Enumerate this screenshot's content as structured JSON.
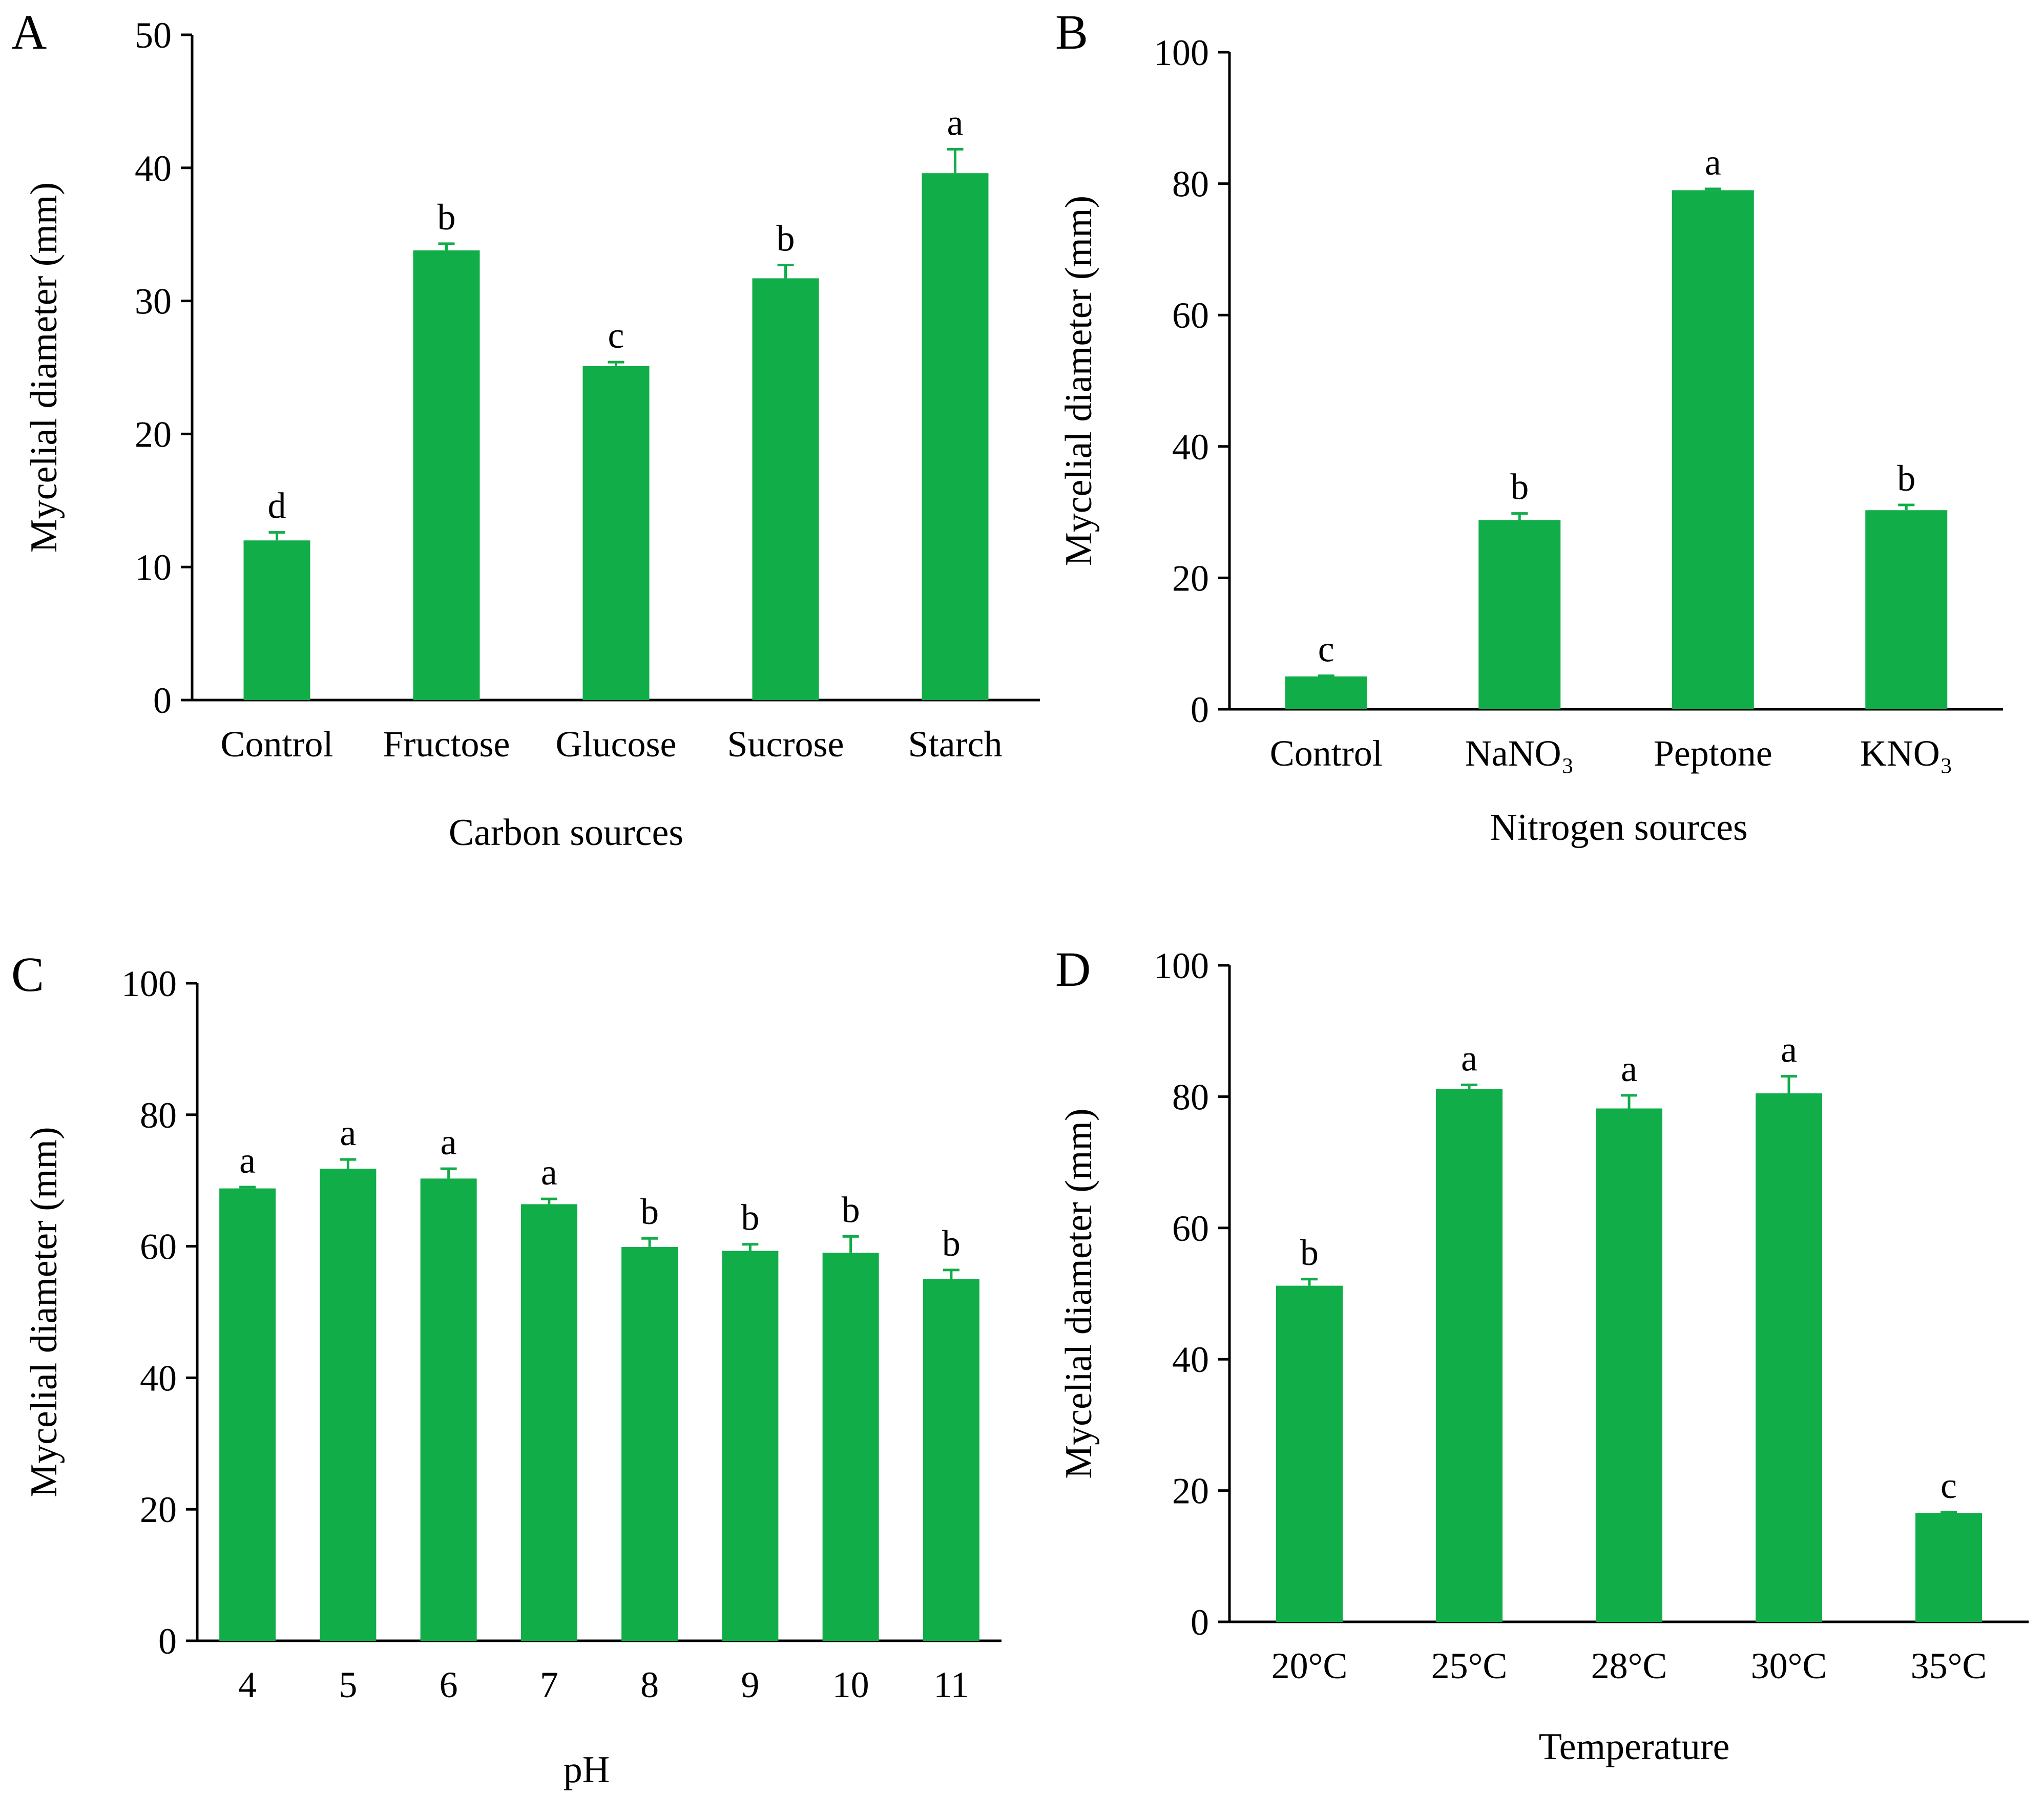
{
  "colors": {
    "bar": "#10ad48",
    "axis": "#000000"
  },
  "chart_data": [
    {
      "type": "bar",
      "panel": "A",
      "title": "",
      "xlabel": "Carbon sources",
      "ylabel": "Mycelial diameter (mm)",
      "ylim": [
        0,
        50
      ],
      "yticks": [
        0,
        10,
        20,
        30,
        40,
        50
      ],
      "categories": [
        "Control",
        "Fructose",
        "Glucose",
        "Sucrose",
        "Starch"
      ],
      "values": [
        12.0,
        33.8,
        25.1,
        31.7,
        39.6
      ],
      "errors": [
        0.6,
        0.5,
        0.3,
        1.0,
        1.8
      ],
      "letters": [
        "d",
        "b",
        "c",
        "b",
        "a"
      ]
    },
    {
      "type": "bar",
      "panel": "B",
      "title": "",
      "xlabel": "Nitrogen sources",
      "ylabel": "Mycelial diameter (mm)",
      "ylim": [
        0,
        100
      ],
      "yticks": [
        0,
        20,
        40,
        60,
        80,
        100
      ],
      "categories": [
        "Control",
        "NaNO₃",
        "Peptone",
        "KNO₃"
      ],
      "values": [
        5.0,
        28.8,
        79.0,
        30.3
      ],
      "errors": [
        0.1,
        1.0,
        0.2,
        0.8
      ],
      "letters": [
        "c",
        "b",
        "a",
        "b"
      ]
    },
    {
      "type": "bar",
      "panel": "C",
      "title": "",
      "xlabel": "pH",
      "ylabel": "Mycelial diameter (mm)",
      "ylim": [
        0,
        100
      ],
      "yticks": [
        0,
        20,
        40,
        60,
        80,
        100
      ],
      "categories": [
        "4",
        "5",
        "6",
        "7",
        "8",
        "9",
        "10",
        "11"
      ],
      "values": [
        68.8,
        71.8,
        70.3,
        66.4,
        59.9,
        59.3,
        59.0,
        55.0
      ],
      "errors": [
        0.2,
        1.4,
        1.5,
        0.8,
        1.3,
        1.0,
        2.5,
        1.4
      ],
      "letters": [
        "a",
        "a",
        "a",
        "a",
        "b",
        "b",
        "b",
        "b"
      ]
    },
    {
      "type": "bar",
      "panel": "D",
      "title": "",
      "xlabel": "Temperature",
      "ylabel": "Mycelial diameter (mm)",
      "ylim": [
        0,
        100
      ],
      "yticks": [
        0,
        20,
        40,
        60,
        80,
        100
      ],
      "categories": [
        "20°C",
        "25°C",
        "28°C",
        "30°C",
        "35°C"
      ],
      "values": [
        51.2,
        81.2,
        78.2,
        80.5,
        16.6
      ],
      "errors": [
        1.0,
        0.6,
        2.0,
        2.6,
        0.1
      ],
      "letters": [
        "b",
        "a",
        "a",
        "a",
        "c"
      ]
    }
  ]
}
